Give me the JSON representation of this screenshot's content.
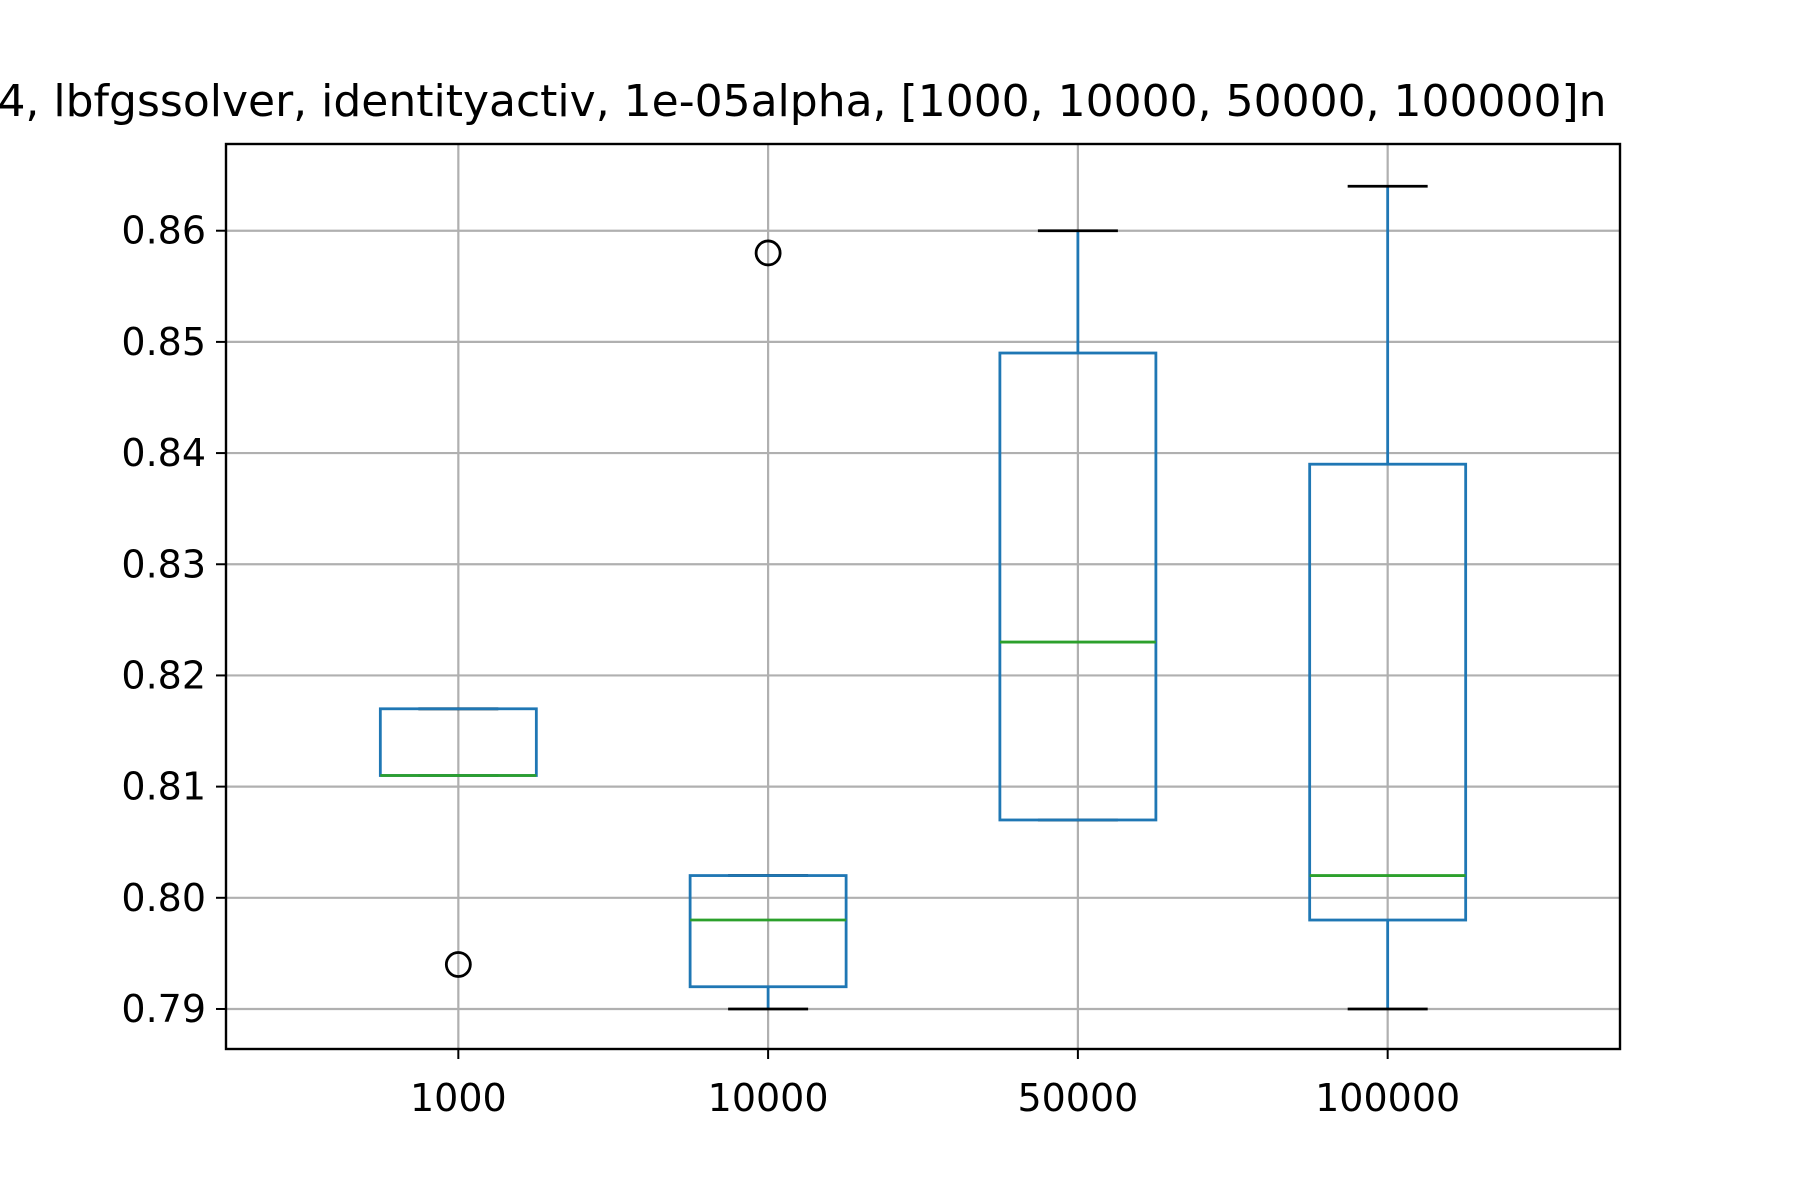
{
  "chart_data": {
    "type": "box",
    "title": "4, lbfgssolver, identityactiv, 1e-05alpha, [1000, 10000, 50000, 100000]n",
    "xlabel": "",
    "ylabel": "",
    "categories": [
      "1000",
      "10000",
      "50000",
      "100000"
    ],
    "boxes": [
      {
        "category": "1000",
        "whisker_low": 0.811,
        "q1": 0.811,
        "median": 0.811,
        "q3": 0.817,
        "whisker_high": 0.817,
        "outliers": [
          0.794
        ]
      },
      {
        "category": "10000",
        "whisker_low": 0.79,
        "q1": 0.792,
        "median": 0.798,
        "q3": 0.802,
        "whisker_high": 0.802,
        "outliers": [
          0.858
        ]
      },
      {
        "category": "50000",
        "whisker_low": 0.807,
        "q1": 0.807,
        "median": 0.823,
        "q3": 0.849,
        "whisker_high": 0.86,
        "outliers": []
      },
      {
        "category": "100000",
        "whisker_low": 0.79,
        "q1": 0.798,
        "median": 0.802,
        "q3": 0.839,
        "whisker_high": 0.864,
        "outliers": []
      }
    ],
    "ylim": [
      0.7864,
      0.8678
    ],
    "yticks": [
      0.79,
      0.8,
      0.81,
      0.82,
      0.83,
      0.84,
      0.85,
      0.86
    ],
    "ytick_labels": [
      "0.79",
      "0.80",
      "0.81",
      "0.82",
      "0.83",
      "0.84",
      "0.85",
      "0.86"
    ],
    "grid": true,
    "colors": {
      "box": "#1f77b4",
      "median": "#2ca02c",
      "whisker_cap": "#000000",
      "grid": "#b0b0b0",
      "outlier": "#000000"
    }
  }
}
